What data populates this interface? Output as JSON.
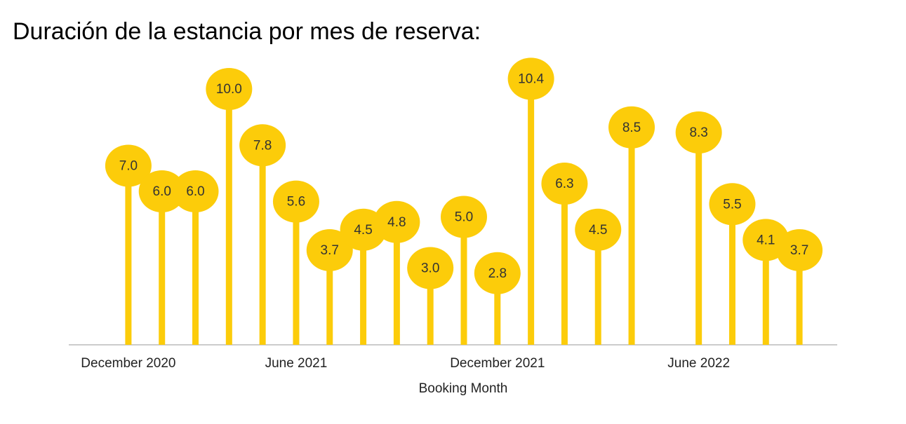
{
  "chart_data": {
    "type": "lollipop",
    "title": "Duración de la estancia por mes de reserva:",
    "x_label": "Booking Month",
    "categories": [
      "December 2020",
      null,
      null,
      null,
      null,
      "June 2021",
      null,
      null,
      null,
      null,
      null,
      "December 2021",
      null,
      null,
      null,
      null,
      null,
      "June 2022",
      null,
      null,
      null
    ],
    "values": [
      7.0,
      6.0,
      6.0,
      10.0,
      7.8,
      5.6,
      3.7,
      4.5,
      4.8,
      3.0,
      5.0,
      2.8,
      10.4,
      6.3,
      4.5,
      8.5,
      null,
      8.3,
      5.5,
      4.1,
      3.7
    ],
    "value_labels": [
      "7.0",
      "6.0",
      "6.0",
      "10.0",
      "7.8",
      "5.6",
      "3.7",
      "4.5",
      "4.8",
      "3.0",
      "5.0",
      "2.8",
      "10.4",
      "6.3",
      "4.5",
      "8.5",
      null,
      "8.3",
      "5.5",
      "4.1",
      "3.7"
    ],
    "color": "#fccc0a",
    "ylim": [
      0,
      12
    ]
  }
}
